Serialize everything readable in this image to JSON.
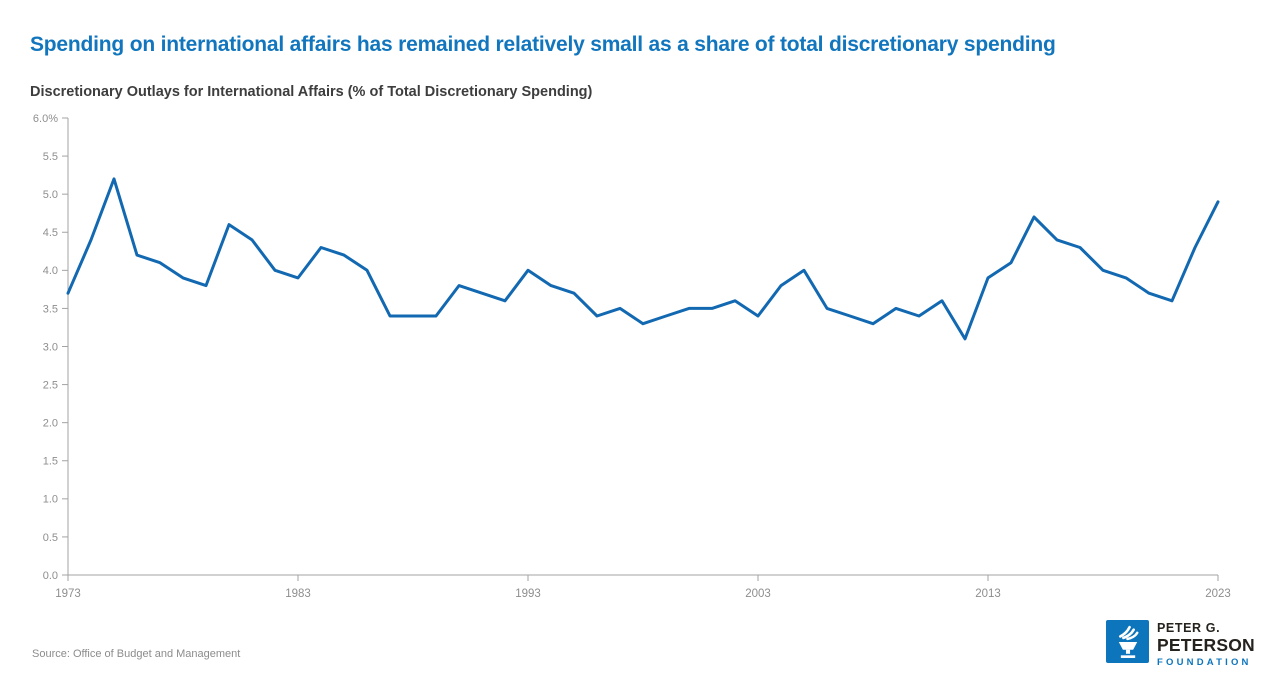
{
  "header": {
    "title": "Spending on international affairs has remained relatively small as a share of total discretionary spending",
    "subtitle": "Discretionary Outlays for International Affairs (% of Total Discretionary Spending)"
  },
  "chart_data": {
    "type": "line",
    "title": "Discretionary Outlays for International Affairs (% of Total Discretionary Spending)",
    "x": [
      1973,
      1974,
      1975,
      1976,
      1977,
      1978,
      1979,
      1980,
      1981,
      1982,
      1983,
      1984,
      1985,
      1986,
      1987,
      1988,
      1989,
      1990,
      1991,
      1992,
      1993,
      1994,
      1995,
      1996,
      1997,
      1998,
      1999,
      2000,
      2001,
      2002,
      2003,
      2004,
      2005,
      2006,
      2007,
      2008,
      2009,
      2010,
      2011,
      2012,
      2013,
      2014,
      2015,
      2016,
      2017,
      2018,
      2019,
      2020,
      2021,
      2022,
      2023
    ],
    "values": [
      3.7,
      4.4,
      5.2,
      4.2,
      4.1,
      3.9,
      3.8,
      4.6,
      4.4,
      4.0,
      3.9,
      4.3,
      4.2,
      4.0,
      3.4,
      3.4,
      3.4,
      3.8,
      3.7,
      3.6,
      4.0,
      3.8,
      3.7,
      3.4,
      3.5,
      3.3,
      3.4,
      3.5,
      3.5,
      3.6,
      3.4,
      3.8,
      4.0,
      3.5,
      3.4,
      3.3,
      3.5,
      3.4,
      3.6,
      3.1,
      3.9,
      4.1,
      4.7,
      4.4,
      4.3,
      4.0,
      3.9,
      3.7,
      3.6,
      4.3,
      4.9
    ],
    "xlabel": "",
    "ylabel": "",
    "ylim": [
      0,
      6
    ],
    "ytick_step": 0.5,
    "ytick_top_label": "6.0%",
    "xticks": [
      1973,
      1983,
      1993,
      2003,
      2013,
      2023
    ],
    "grid": false,
    "legend": false,
    "line_color": "#1269b1",
    "axis_color": "#a3a3a3",
    "tick_label_color": "#8e8e8e"
  },
  "footer": {
    "source": "Source: Office of Budget and Management",
    "logo": {
      "line1": "PETER G.",
      "line2": "PETERSON",
      "line3": "FOUNDATION",
      "brand_color": "#0d75bc"
    }
  }
}
